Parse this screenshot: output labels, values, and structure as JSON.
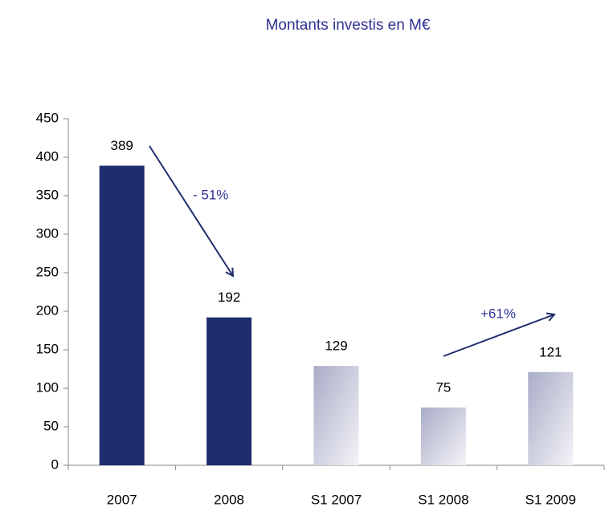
{
  "chart_data": {
    "type": "bar",
    "title": "Montants investis en M€",
    "categories": [
      "2007",
      "2008",
      "S1 2007",
      "S1 2008",
      "S1 2009"
    ],
    "values": [
      389,
      192,
      129,
      75,
      121
    ],
    "colors": [
      "#1f2d6e",
      "#1f2d6e",
      "#a9acc7",
      "#a9acc7",
      "#a9acc7"
    ],
    "ylim": [
      0,
      450
    ],
    "yticks": [
      0,
      50,
      100,
      150,
      200,
      250,
      300,
      350,
      400,
      450
    ],
    "annotations": [
      "- 51%",
      "+61%"
    ]
  }
}
